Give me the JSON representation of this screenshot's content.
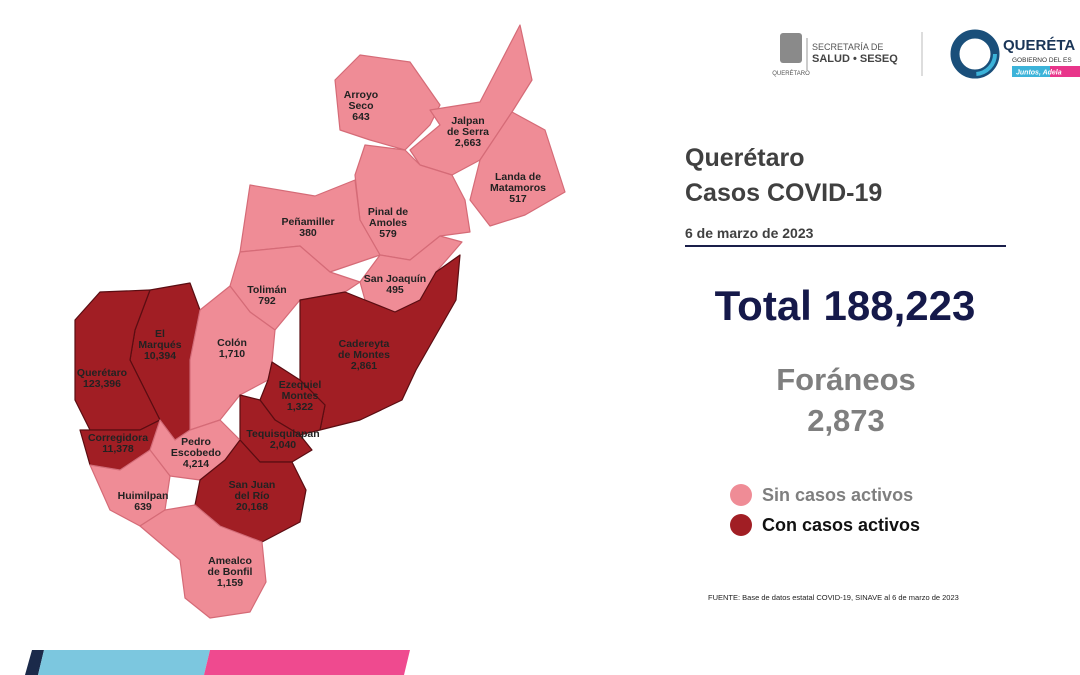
{
  "header": {
    "secretaria_lines": [
      "SECRETARÍA DE",
      "SALUD • SESEQ"
    ],
    "seal_caption": "QUERÉTARO",
    "gov_lines": [
      "QUERÉTA",
      "GOBIERNO DEL ES",
      "Juntos, Adela"
    ]
  },
  "title_lines": [
    "Querétaro",
    "Casos COVID-19"
  ],
  "date": "6 de marzo de 2023",
  "total": "Total 188,223",
  "foraneos": {
    "label": "Foráneos",
    "value": "2,873"
  },
  "legend": {
    "items": [
      {
        "label": "Sin casos activos",
        "color": "#ef8c96"
      },
      {
        "label": "Con casos activos",
        "color": "#a11e24"
      }
    ]
  },
  "source": "FUENTE: Base de datos estatal COVID-19, SINAVE al 6 de marzo de 2023",
  "municipalities": [
    {
      "name_lines": [
        "Arroyo",
        "Seco"
      ],
      "cases": "643",
      "active": false
    },
    {
      "name_lines": [
        "Jalpan",
        "de Serra"
      ],
      "cases": "2,663",
      "active": false
    },
    {
      "name_lines": [
        "Landa de",
        "Matamoros"
      ],
      "cases": "517",
      "active": false
    },
    {
      "name_lines": [
        "Pinal de",
        "Amoles"
      ],
      "cases": "579",
      "active": false
    },
    {
      "name_lines": [
        "Peñamiller"
      ],
      "cases": "380",
      "active": false
    },
    {
      "name_lines": [
        "San Joaquín"
      ],
      "cases": "495",
      "active": false
    },
    {
      "name_lines": [
        "Tolimán"
      ],
      "cases": "792",
      "active": false
    },
    {
      "name_lines": [
        "Cadereyta",
        "de Montes"
      ],
      "cases": "2,861",
      "active": true
    },
    {
      "name_lines": [
        "El",
        "Marqués"
      ],
      "cases": "10,394",
      "active": true
    },
    {
      "name_lines": [
        "Colón"
      ],
      "cases": "1,710",
      "active": false
    },
    {
      "name_lines": [
        "Ezequiel",
        "Montes"
      ],
      "cases": "1,322",
      "active": true
    },
    {
      "name_lines": [
        "Querétaro"
      ],
      "cases": "123,396",
      "active": true
    },
    {
      "name_lines": [
        "Corregidora"
      ],
      "cases": "11,378",
      "active": true
    },
    {
      "name_lines": [
        "Tequisquiapan"
      ],
      "cases": "2,040",
      "active": true
    },
    {
      "name_lines": [
        "Pedro",
        "Escobedo"
      ],
      "cases": "4,214",
      "active": false
    },
    {
      "name_lines": [
        "Huimilpan"
      ],
      "cases": "639",
      "active": false
    },
    {
      "name_lines": [
        "San Juan",
        "del Río"
      ],
      "cases": "20,168",
      "active": true
    },
    {
      "name_lines": [
        "Amealco",
        "de Bonfil"
      ],
      "cases": "1,159",
      "active": false
    }
  ]
}
